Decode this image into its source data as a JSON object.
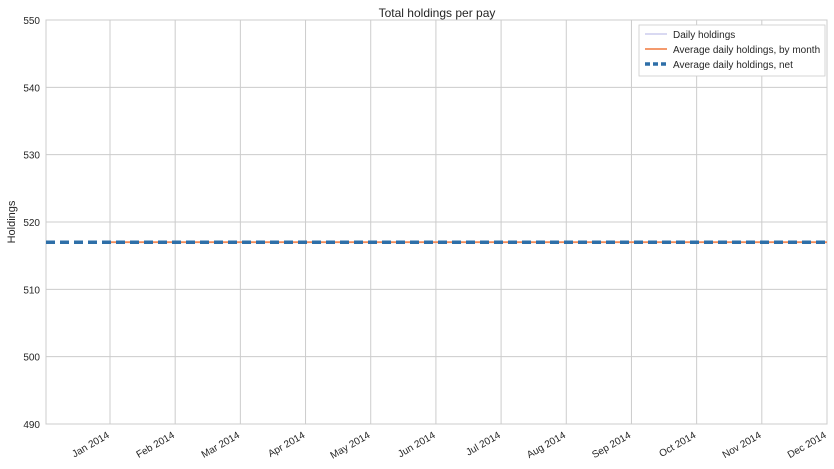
{
  "chart_data": {
    "type": "line",
    "title": "Total holdings per pay",
    "xlabel": "",
    "ylabel": "Holdings",
    "ylim": [
      490,
      550
    ],
    "yticks": [
      490,
      500,
      510,
      520,
      530,
      540,
      550
    ],
    "x_categories": [
      "Jan 2014",
      "Feb 2014",
      "Mar 2014",
      "Apr 2014",
      "May 2014",
      "Jun 2014",
      "Jul 2014",
      "Aug 2014",
      "Sep 2014",
      "Oct 2014",
      "Nov 2014",
      "Dec 2014"
    ],
    "grid": true,
    "legend_position": "top-right",
    "series": [
      {
        "name": "Daily holdings",
        "color": "#b3b3e6",
        "style": "solid",
        "values": [
          517,
          517,
          517,
          517,
          517,
          517,
          517,
          517,
          517,
          517,
          517,
          517
        ]
      },
      {
        "name": "Average daily holdings, by month",
        "color": "#f28b58",
        "style": "solid",
        "values": [
          517,
          517,
          517,
          517,
          517,
          517,
          517,
          517,
          517,
          517,
          517,
          517
        ]
      },
      {
        "name": "Average daily holdings, net",
        "color": "#2e6fa8",
        "style": "dashed",
        "values": [
          517,
          517,
          517,
          517,
          517,
          517,
          517,
          517,
          517,
          517,
          517,
          517
        ]
      }
    ]
  }
}
